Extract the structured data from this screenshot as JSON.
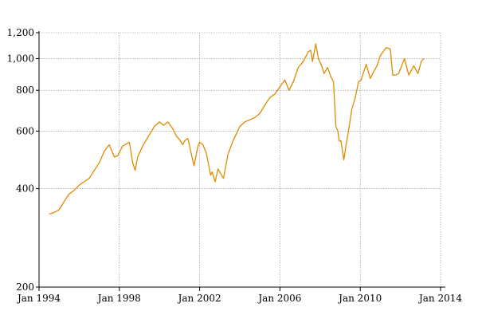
{
  "chart_data": {
    "type": "line",
    "title": "",
    "xlabel": "",
    "ylabel": "",
    "y_scale": "log",
    "ylim": [
      200,
      1200
    ],
    "xlim": [
      "1994-01-01",
      "2014-01-01"
    ],
    "grid": true,
    "legend": "none",
    "colors": {
      "line": "#e08a00",
      "grid": "#8c8c8c",
      "axis": "#000000"
    },
    "x_ticks": [
      {
        "value": "1994-01-01",
        "label": "Jan 1994"
      },
      {
        "value": "1998-01-01",
        "label": "Jan 1998"
      },
      {
        "value": "2002-01-01",
        "label": "Jan 2002"
      },
      {
        "value": "2006-01-01",
        "label": "Jan 2006"
      },
      {
        "value": "2010-01-01",
        "label": "Jan 2010"
      },
      {
        "value": "2014-01-01",
        "label": "Jan 2014"
      }
    ],
    "y_ticks": [
      {
        "value": 200,
        "label": "200"
      },
      {
        "value": 400,
        "label": "400"
      },
      {
        "value": 600,
        "label": "600"
      },
      {
        "value": 800,
        "label": "800"
      },
      {
        "value": 1000,
        "label": "1,000"
      },
      {
        "value": 1200,
        "label": "1,200"
      }
    ],
    "series": [
      {
        "x": [
          "1994-07-01",
          "1994-10-01",
          "1995-01-01",
          "1995-04-01",
          "1995-07-01",
          "1995-10-01",
          "1996-01-01",
          "1996-04-01",
          "1996-07-01",
          "1996-10-01",
          "1997-01-01",
          "1997-04-01",
          "1997-07-01",
          "1997-10-01",
          "1997-12-01",
          "1998-03-01",
          "1998-07-01",
          "1998-09-01",
          "1998-10-15",
          "1998-12-01",
          "1999-03-01",
          "1999-07-01",
          "1999-10-01",
          "2000-01-01",
          "2000-03-15",
          "2000-06-01",
          "2000-09-01",
          "2000-11-01",
          "2001-01-01",
          "2001-03-01",
          "2001-04-01",
          "2001-06-01",
          "2001-09-20",
          "2001-12-01",
          "2002-01-01",
          "2002-03-01",
          "2002-05-01",
          "2002-07-20",
          "2002-08-15",
          "2002-10-10",
          "2002-12-01",
          "2003-03-10",
          "2003-06-01",
          "2003-09-01",
          "2004-01-01",
          "2004-04-01",
          "2004-07-01",
          "2004-10-01",
          "2005-01-01",
          "2005-04-01",
          "2005-07-01",
          "2005-10-01",
          "2006-01-01",
          "2006-04-01",
          "2006-06-15",
          "2006-09-01",
          "2006-12-01",
          "2007-03-01",
          "2007-06-01",
          "2007-07-15",
          "2007-08-15",
          "2007-10-15",
          "2007-12-01",
          "2008-01-20",
          "2008-03-15",
          "2008-05-15",
          "2008-07-15",
          "2008-09-01",
          "2008-10-15",
          "2008-11-20",
          "2008-12-15",
          "2009-01-15",
          "2009-03-09",
          "2009-04-15",
          "2009-06-01",
          "2009-08-01",
          "2009-10-01",
          "2009-12-01",
          "2010-01-15",
          "2010-04-20",
          "2010-07-01",
          "2010-08-15",
          "2010-11-01",
          "2011-01-01",
          "2011-04-15",
          "2011-07-01",
          "2011-08-15",
          "2011-10-01",
          "2011-12-01",
          "2012-03-15",
          "2012-06-01",
          "2012-09-01",
          "2012-11-15",
          "2013-01-15",
          "2013-03-01"
        ],
        "y": [
          335,
          338,
          345,
          365,
          385,
          395,
          410,
          420,
          430,
          455,
          480,
          520,
          545,
          500,
          505,
          540,
          555,
          480,
          455,
          500,
          540,
          585,
          620,
          640,
          625,
          640,
          610,
          580,
          565,
          545,
          560,
          570,
          470,
          540,
          555,
          545,
          515,
          440,
          450,
          420,
          460,
          430,
          510,
          560,
          620,
          640,
          650,
          660,
          680,
          720,
          760,
          780,
          820,
          860,
          800,
          850,
          940,
          980,
          1050,
          1060,
          980,
          1110,
          1000,
          960,
          900,
          940,
          880,
          850,
          620,
          600,
          560,
          560,
          490,
          540,
          600,
          700,
          760,
          850,
          860,
          960,
          870,
          900,
          950,
          1020,
          1080,
          1070,
          890,
          890,
          900,
          1000,
          890,
          950,
          900,
          980,
          1000
        ]
      }
    ]
  }
}
